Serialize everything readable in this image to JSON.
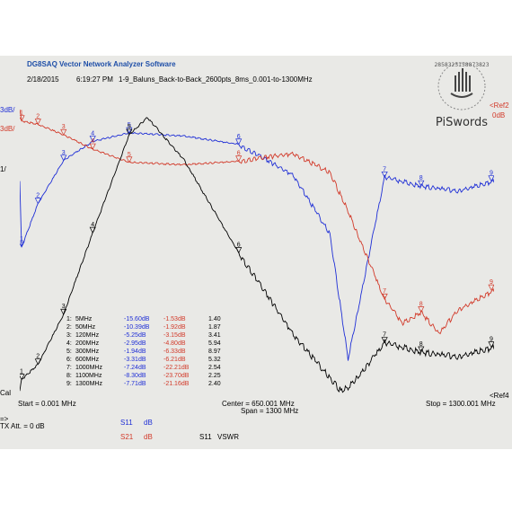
{
  "app": {
    "title": "DG8SAQ Vector Network Analyzer Software"
  },
  "measurement": {
    "date": "2/18/2015",
    "time": "6:19:27 PM",
    "file": "1-9_Baluns_Back-to-Back_2600pts_8ms_0.001-to-1300MHz"
  },
  "logo": {
    "text": "PiSwords",
    "arc_text": "2858325158873823"
  },
  "axis": {
    "left_top1": "3dB/",
    "left_top2": "3dB/",
    "left_mid": "1/",
    "left_bottom": "Cal",
    "right_top1": "<Ref2",
    "right_top2": "0dB",
    "right_bottom": "<Ref4",
    "start": "Start = 0.001 MHz",
    "center": "Center = 650.001 MHz",
    "span": "Span = 1300 MHz",
    "stop": "Stop = 1300.001 MHz"
  },
  "markers": [
    {
      "num": "1:",
      "freq": "5MHz",
      "s11": "-15.60dB",
      "s21": "-1.53dB",
      "vswr": "1.40"
    },
    {
      "num": "2:",
      "freq": "50MHz",
      "s11": "-10.39dB",
      "s21": "-1.92dB",
      "vswr": "1.87"
    },
    {
      "num": "3:",
      "freq": "120MHz",
      "s11": "-5.25dB",
      "s21": "-3.15dB",
      "vswr": "3.41"
    },
    {
      "num": "4:",
      "freq": "200MHz",
      "s11": "-2.95dB",
      "s21": "-4.80dB",
      "vswr": "5.94"
    },
    {
      "num": "5:",
      "freq": "300MHz",
      "s11": "-1.94dB",
      "s21": "-6.33dB",
      "vswr": "8.97"
    },
    {
      "num": "6:",
      "freq": "600MHz",
      "s11": "-3.31dB",
      "s21": "-6.21dB",
      "vswr": "5.32"
    },
    {
      "num": "7:",
      "freq": "1000MHz",
      "s11": "-7.24dB",
      "s21": "-22.21dB",
      "vswr": "2.54"
    },
    {
      "num": "8:",
      "freq": "1100MHz",
      "s11": "-8.30dB",
      "s21": "-23.70dB",
      "vswr": "2.25"
    },
    {
      "num": "9:",
      "freq": "1300MHz",
      "s11": "-7.71dB",
      "s21": "-21.16dB",
      "vswr": "2.40"
    }
  ],
  "legend": {
    "arrow": "=>",
    "tx_att": "TX Att.  = 0 dB",
    "s11_name": "S11",
    "s11_unit": "dB",
    "s21_name": "S21",
    "s21_unit": "dB",
    "vswr_name": "S11",
    "vswr_unit": "VSWR"
  },
  "colors": {
    "s11": "#1f2fd6",
    "s21": "#d23a2a",
    "vswr": "#000000",
    "title": "#1f4fa8"
  },
  "chart_data": {
    "type": "line",
    "x_range_mhz": [
      0.001,
      1300.001
    ],
    "gridlines": false,
    "series": [
      {
        "name": "S11 dB",
        "x": [
          0,
          5,
          50,
          120,
          200,
          300,
          450,
          600,
          750,
          850,
          900,
          1000,
          1100,
          1200,
          1300
        ],
        "values": [
          -7.7,
          -15.6,
          -10.39,
          -5.25,
          -2.95,
          -1.94,
          -2.3,
          -3.31,
          -7.0,
          -14.0,
          -29.0,
          -7.24,
          -8.3,
          -8.9,
          -7.71
        ]
      },
      {
        "name": "S21 dB",
        "x": [
          0,
          5,
          50,
          120,
          200,
          300,
          450,
          600,
          700,
          750,
          850,
          900,
          1000,
          1050,
          1100,
          1150,
          1200,
          1300
        ],
        "values": [
          -0.2,
          -1.53,
          -1.92,
          -3.15,
          -4.8,
          -6.33,
          -6.6,
          -6.21,
          -5.6,
          -5.3,
          -7.5,
          -12.0,
          -22.21,
          -25.0,
          -23.7,
          -26.2,
          -23.5,
          -21.16
        ]
      },
      {
        "name": "S11 VSWR",
        "x": [
          0,
          5,
          50,
          120,
          200,
          300,
          350,
          450,
          600,
          750,
          880,
          900,
          950,
          1000,
          1100,
          1200,
          1300
        ],
        "values": [
          1.05,
          1.4,
          1.87,
          3.41,
          5.94,
          8.97,
          9.5,
          8.2,
          5.32,
          2.8,
          1.05,
          1.15,
          1.8,
          2.54,
          2.25,
          2.1,
          2.4
        ]
      }
    ]
  }
}
